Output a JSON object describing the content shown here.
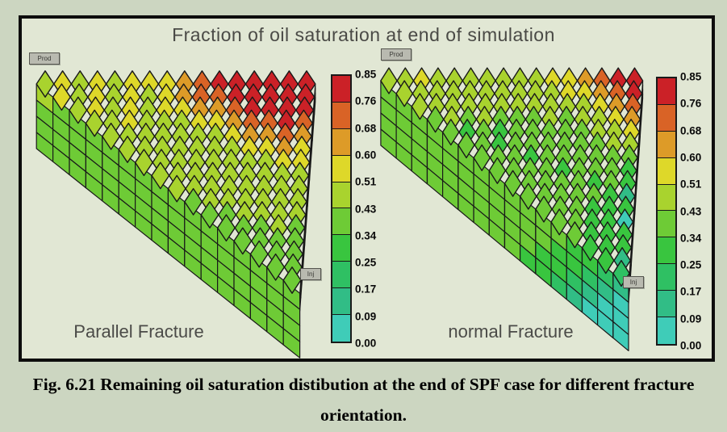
{
  "figure": {
    "title": "Fraction of oil saturation at end of simulation",
    "caption": "Fig. 6.21 Remaining oil saturation distibution at the end of SPF case for different fracture orientation.",
    "colors": {
      "page_bg": "#ccd6c1",
      "panel_bg": "#e1e7d4",
      "panel_border": "#0d0d0d",
      "title_text": "#4a4a46",
      "grid_line": "#191919"
    }
  },
  "colorbar": {
    "boundaries": [
      0.0,
      0.09,
      0.17,
      0.25,
      0.34,
      0.43,
      0.51,
      0.6,
      0.68,
      0.76,
      0.85
    ],
    "colors_low_to_high": [
      "#3fccb8",
      "#31bd86",
      "#2fc063",
      "#39c53f",
      "#6ecb36",
      "#a9d32e",
      "#ded829",
      "#dd9b28",
      "#d96326",
      "#cb2127"
    ],
    "tick_labels_top_to_bottom": [
      "0.85",
      "0.76",
      "0.68",
      "0.60",
      "0.51",
      "0.43",
      "0.34",
      "0.25",
      "0.17",
      "0.09",
      "0.00"
    ]
  },
  "chart_data": [
    {
      "type": "heatmap",
      "name": "parallel-fracture",
      "label": "Parallel Fracture",
      "well_labels": [
        "Prod",
        "Inj"
      ],
      "value_meaning": "fraction of oil saturation",
      "top_grid": [
        [
          0.47,
          0.55,
          0.48,
          0.56,
          0.49,
          0.55,
          0.57,
          0.55,
          0.62,
          0.72,
          0.78,
          0.82,
          0.8,
          0.83,
          0.81,
          0.83
        ],
        [
          0.55,
          0.48,
          0.55,
          0.48,
          0.55,
          0.49,
          0.56,
          0.62,
          0.7,
          0.75,
          0.8,
          0.83,
          0.81,
          0.83,
          0.8
        ],
        [
          0.47,
          0.54,
          0.47,
          0.54,
          0.48,
          0.55,
          0.57,
          0.63,
          0.66,
          0.73,
          0.79,
          0.82,
          0.8,
          0.78
        ],
        [
          0.46,
          0.47,
          0.54,
          0.47,
          0.48,
          0.49,
          0.55,
          0.58,
          0.64,
          0.7,
          0.74,
          0.78,
          0.72
        ],
        [
          0.46,
          0.47,
          0.46,
          0.48,
          0.47,
          0.48,
          0.49,
          0.56,
          0.63,
          0.66,
          0.7,
          0.66
        ],
        [
          0.45,
          0.46,
          0.47,
          0.46,
          0.47,
          0.48,
          0.47,
          0.52,
          0.57,
          0.63,
          0.59
        ],
        [
          0.45,
          0.46,
          0.45,
          0.46,
          0.47,
          0.46,
          0.48,
          0.5,
          0.55,
          0.52
        ],
        [
          0.44,
          0.45,
          0.46,
          0.45,
          0.46,
          0.47,
          0.46,
          0.49,
          0.47
        ],
        [
          0.44,
          0.45,
          0.44,
          0.45,
          0.46,
          0.45,
          0.46,
          0.45
        ],
        [
          0.4,
          0.44,
          0.45,
          0.44,
          0.45,
          0.44,
          0.45
        ],
        [
          0.4,
          0.41,
          0.44,
          0.45,
          0.44,
          0.45
        ],
        [
          0.4,
          0.41,
          0.4,
          0.44,
          0.41
        ],
        [
          0.39,
          0.4,
          0.41,
          0.4
        ],
        [
          0.39,
          0.4,
          0.39
        ],
        [
          0.38,
          0.39
        ],
        [
          0.38
        ]
      ],
      "front_face_grid": [
        [
          0.44,
          0.4,
          0.42,
          0.4,
          0.41,
          0.4,
          0.42,
          0.4,
          0.41,
          0.4,
          0.42,
          0.4,
          0.41,
          0.4,
          0.42,
          0.4
        ],
        [
          0.4,
          0.38,
          0.4,
          0.39,
          0.4,
          0.38,
          0.4,
          0.39,
          0.4,
          0.38,
          0.4,
          0.39,
          0.4,
          0.38,
          0.4,
          0.39
        ],
        [
          0.38,
          0.37,
          0.38,
          0.37,
          0.38,
          0.37,
          0.38,
          0.37,
          0.38,
          0.37,
          0.38,
          0.37,
          0.38,
          0.37,
          0.38,
          0.37
        ],
        [
          0.37,
          0.36,
          0.37,
          0.36,
          0.37,
          0.36,
          0.37,
          0.36,
          0.37,
          0.36,
          0.37,
          0.36,
          0.37,
          0.36,
          0.37,
          0.36
        ]
      ]
    },
    {
      "type": "heatmap",
      "name": "normal-fracture",
      "label": "normal Fracture",
      "well_labels": [
        "Prod",
        "Inj"
      ],
      "value_meaning": "fraction of oil saturation",
      "top_grid": [
        [
          0.46,
          0.47,
          0.52,
          0.46,
          0.47,
          0.46,
          0.47,
          0.46,
          0.48,
          0.47,
          0.52,
          0.56,
          0.63,
          0.7,
          0.78,
          0.82
        ],
        [
          0.45,
          0.46,
          0.45,
          0.46,
          0.45,
          0.46,
          0.45,
          0.46,
          0.45,
          0.47,
          0.52,
          0.57,
          0.63,
          0.72,
          0.8
        ],
        [
          0.44,
          0.45,
          0.44,
          0.45,
          0.44,
          0.45,
          0.44,
          0.45,
          0.44,
          0.46,
          0.48,
          0.55,
          0.63,
          0.7
        ],
        [
          0.4,
          0.44,
          0.4,
          0.44,
          0.4,
          0.41,
          0.4,
          0.44,
          0.41,
          0.44,
          0.46,
          0.52,
          0.6
        ],
        [
          0.4,
          0.28,
          0.4,
          0.3,
          0.4,
          0.41,
          0.4,
          0.41,
          0.4,
          0.44,
          0.46,
          0.52
        ],
        [
          0.39,
          0.4,
          0.3,
          0.4,
          0.39,
          0.4,
          0.39,
          0.4,
          0.41,
          0.44,
          0.46
        ],
        [
          0.39,
          0.38,
          0.39,
          0.3,
          0.39,
          0.38,
          0.39,
          0.4,
          0.41,
          0.4
        ],
        [
          0.38,
          0.39,
          0.38,
          0.39,
          0.3,
          0.39,
          0.38,
          0.39,
          0.28
        ],
        [
          0.38,
          0.37,
          0.38,
          0.37,
          0.38,
          0.3,
          0.37,
          0.3
        ],
        [
          0.37,
          0.38,
          0.37,
          0.38,
          0.37,
          0.3,
          0.12
        ],
        [
          0.37,
          0.36,
          0.37,
          0.3,
          0.28,
          0.3
        ],
        [
          0.36,
          0.37,
          0.3,
          0.28,
          0.05
        ],
        [
          0.36,
          0.3,
          0.28,
          0.3
        ],
        [
          0.3,
          0.28,
          0.3
        ],
        [
          0.28,
          0.12
        ],
        [
          0.2
        ]
      ],
      "front_face_grid": [
        [
          0.38,
          0.37,
          0.38,
          0.37,
          0.38,
          0.37,
          0.38,
          0.37,
          0.38,
          0.37,
          0.36,
          0.35,
          0.3,
          0.28,
          0.2,
          0.12
        ],
        [
          0.37,
          0.36,
          0.37,
          0.36,
          0.37,
          0.36,
          0.37,
          0.36,
          0.37,
          0.36,
          0.35,
          0.3,
          0.28,
          0.2,
          0.12,
          0.08
        ],
        [
          0.36,
          0.37,
          0.36,
          0.37,
          0.36,
          0.37,
          0.36,
          0.37,
          0.36,
          0.35,
          0.3,
          0.28,
          0.2,
          0.12,
          0.08,
          0.05
        ],
        [
          0.36,
          0.35,
          0.36,
          0.35,
          0.36,
          0.35,
          0.36,
          0.35,
          0.35,
          0.3,
          0.28,
          0.2,
          0.12,
          0.08,
          0.05,
          0.05
        ]
      ]
    }
  ]
}
